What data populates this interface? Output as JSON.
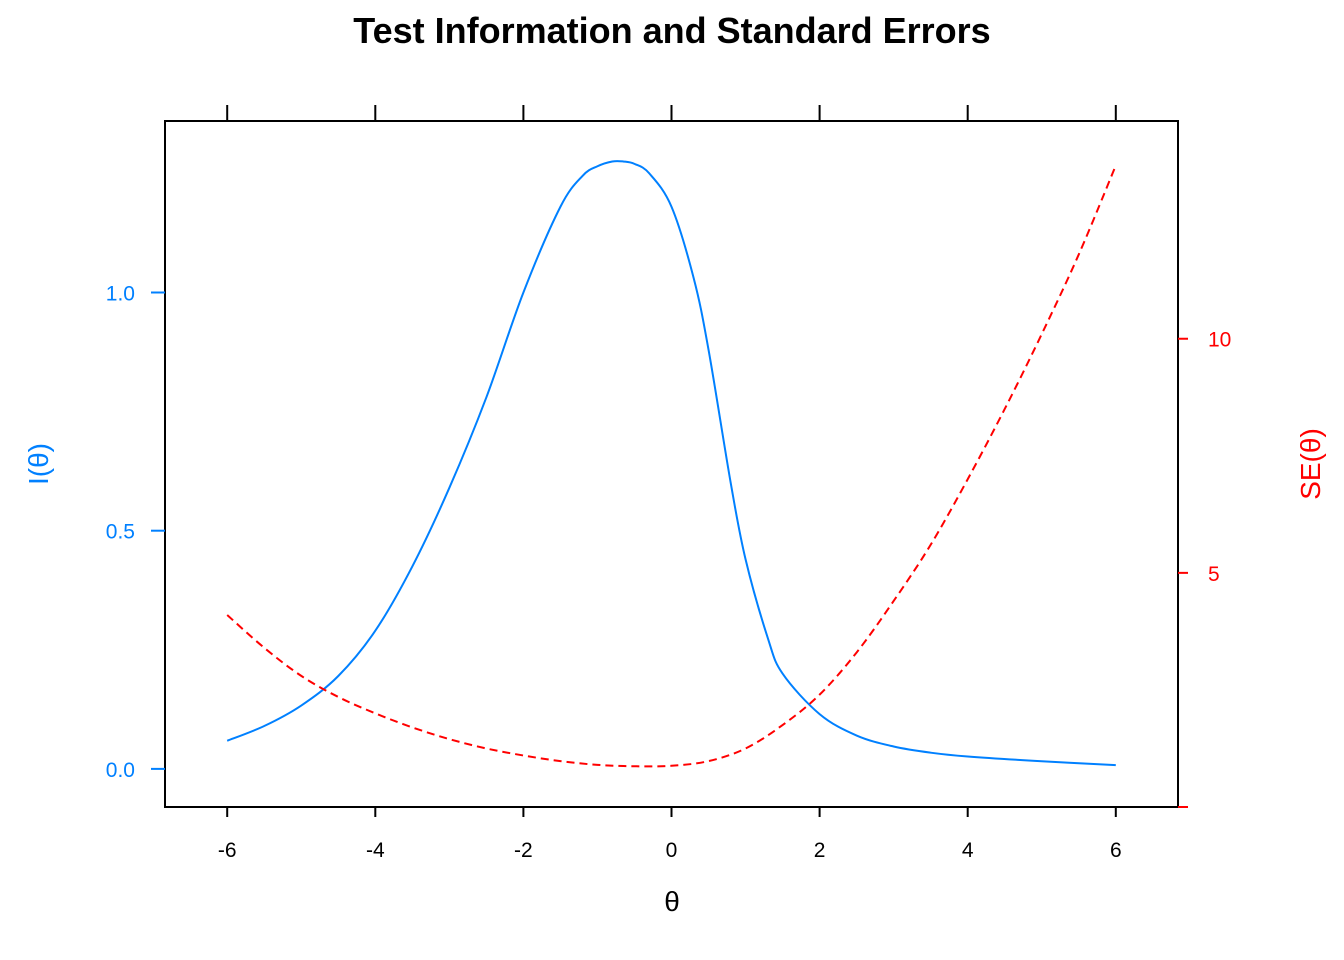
{
  "chart_data": {
    "type": "line",
    "title": "Test Information and Standard Errors",
    "xlabel": "θ",
    "ylabel_left": "I(θ)",
    "ylabel_right": "SE(θ)",
    "xlim": [
      -6.84,
      6.84
    ],
    "ylim_left": [
      -0.08,
      1.36
    ],
    "ylim_right": [
      0,
      14.65
    ],
    "x_ticks": [
      -6,
      -4,
      -2,
      0,
      2,
      4,
      6
    ],
    "x_tick_labels": [
      "-6",
      "-4",
      "-2",
      "0",
      "2",
      "4",
      "6"
    ],
    "y_left_ticks": [
      0.0,
      0.5,
      1.0
    ],
    "y_left_tick_labels": [
      "0.0",
      "0.5",
      "1.0"
    ],
    "y_right_ticks": [
      0,
      5,
      10
    ],
    "y_right_tick_labels": [
      "",
      "5",
      "10"
    ],
    "grid": false,
    "legend": "none",
    "series": [
      {
        "axis": "left",
        "color": "#0080ff",
        "dash": "solid",
        "x": [
          -6,
          -5.5,
          -5,
          -4.5,
          -4,
          -3.5,
          -3,
          -2.5,
          -2,
          -1.5,
          -1.2,
          -1,
          -0.8,
          -0.65,
          -0.5,
          -0.3,
          0,
          0.3,
          0.5,
          0.8,
          1,
          1.3,
          1.5,
          2,
          2.5,
          3,
          3.5,
          4,
          5,
          6
        ],
        "values": [
          0.059,
          0.09,
          0.133,
          0.195,
          0.29,
          0.425,
          0.59,
          0.78,
          1.0,
          1.18,
          1.245,
          1.265,
          1.275,
          1.275,
          1.27,
          1.25,
          1.18,
          1.03,
          0.88,
          0.6,
          0.44,
          0.275,
          0.2,
          0.115,
          0.07,
          0.047,
          0.034,
          0.026,
          0.016,
          0.008
        ]
      },
      {
        "axis": "right",
        "color": "#ff0000",
        "dash": "dashed",
        "x": [
          -6,
          -5.5,
          -5,
          -4.5,
          -4,
          -3.5,
          -3,
          -2.5,
          -2,
          -1.5,
          -1,
          -0.5,
          0,
          0.5,
          1,
          1.5,
          2,
          2.5,
          3,
          3.5,
          4,
          4.5,
          5,
          5.5,
          6
        ],
        "values": [
          4.1,
          3.4,
          2.8,
          2.35,
          2.0,
          1.7,
          1.45,
          1.25,
          1.1,
          0.98,
          0.9,
          0.87,
          0.88,
          0.98,
          1.25,
          1.75,
          2.4,
          3.3,
          4.4,
          5.6,
          7.0,
          8.5,
          10.1,
          11.8,
          13.7
        ]
      }
    ]
  }
}
